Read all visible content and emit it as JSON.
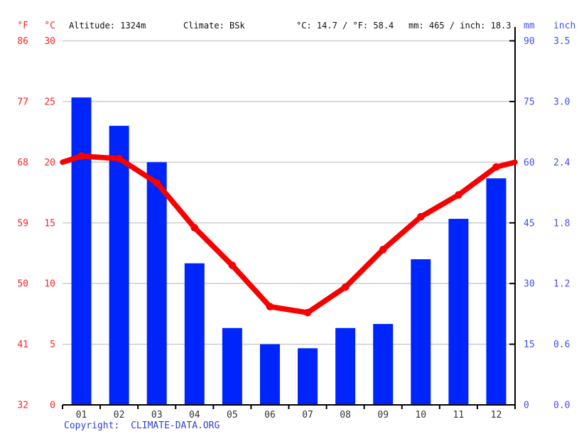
{
  "header": {
    "f_label": "°F",
    "c_label": "°C",
    "altitude": "Altitude: 1324m",
    "climate": "Climate: BSk",
    "temp_summary": "°C: 14.7 / °F: 58.4",
    "precip_summary": "mm: 465 / inch: 18.3",
    "mm_label": "mm",
    "inch_label": "inch"
  },
  "chart_data": {
    "type": "climograph (bar + line)",
    "categories": [
      "01",
      "02",
      "03",
      "04",
      "05",
      "06",
      "07",
      "08",
      "09",
      "10",
      "11",
      "12"
    ],
    "series": [
      {
        "name": "Precipitation",
        "type": "bar",
        "unit": "mm",
        "values": [
          76,
          69,
          60,
          35,
          19,
          15,
          14,
          19,
          20,
          36,
          46,
          56
        ]
      },
      {
        "name": "Temperature",
        "type": "line",
        "unit": "°C",
        "values": [
          20.5,
          20.3,
          18.3,
          14.6,
          11.5,
          8.1,
          7.6,
          9.7,
          12.8,
          15.5,
          17.3,
          19.6
        ],
        "edge_start": 20.0,
        "edge_end": 20.0
      }
    ],
    "left_axis": {
      "f_ticks": [
        86,
        77,
        68,
        59,
        50,
        41,
        32
      ],
      "c_ticks": [
        30,
        25,
        20,
        15,
        10,
        5,
        0
      ],
      "c_range": [
        0,
        30
      ]
    },
    "right_axis": {
      "mm_ticks": [
        90,
        75,
        60,
        45,
        30,
        15,
        0
      ],
      "inch_ticks": [
        "3.5",
        "3.0",
        "2.4",
        "1.8",
        "1.2",
        "0.6",
        "0.0"
      ],
      "mm_range": [
        0,
        90
      ]
    },
    "grid": true,
    "legend": "none"
  },
  "footer": {
    "copyright_label": "Copyright:",
    "copyright_site": "CLIMATE-DATA.ORG"
  },
  "colors": {
    "bar": "#0025fa",
    "line": "#f70000",
    "temp_text": "#ff1f1f",
    "precip_text": "#3d4ff0",
    "grid": "#cccccc",
    "axis": "#000000",
    "month_text": "#333333",
    "header_text": "#111111",
    "copyright": "#2c3fd1"
  }
}
